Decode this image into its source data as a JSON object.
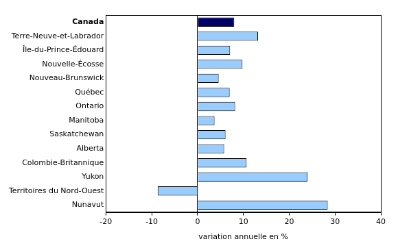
{
  "chart_data": {
    "type": "bar",
    "orientation": "horizontal",
    "categories": [
      "Canada",
      "Terre-Neuve-et-Labrador",
      "Île-du-Prince-Édouard",
      "Nouvelle-Écosse",
      "Nouveau-Brunswick",
      "Québec",
      "Ontario",
      "Manitoba",
      "Saskatchewan",
      "Alberta",
      "Colombie-Britannique",
      "Yukon",
      "Territoires du Nord-Ouest",
      "Nunavut"
    ],
    "values": [
      8.0,
      13.2,
      7.1,
      9.8,
      4.6,
      7.0,
      8.2,
      3.7,
      6.1,
      5.8,
      10.7,
      24.0,
      -8.7,
      28.4
    ],
    "colors": [
      "#000066",
      "#99ccff",
      "#99ccff",
      "#99ccff",
      "#99ccff",
      "#99ccff",
      "#99ccff",
      "#99ccff",
      "#99ccff",
      "#99ccff",
      "#99ccff",
      "#99ccff",
      "#99ccff",
      "#99ccff"
    ],
    "xlabel": "variation annuelle en %",
    "xlim": [
      -20,
      40
    ],
    "xticks": [
      -20,
      -10,
      0,
      10,
      20,
      30,
      40
    ],
    "grid": false
  }
}
